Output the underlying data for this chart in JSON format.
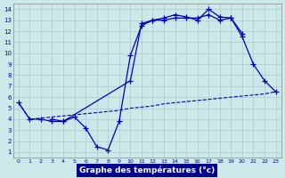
{
  "xlabel": "Graphe des températures (°c)",
  "bg_color": "#cce8e8",
  "grid_color": "#aacccc",
  "line_color": "#0000bb",
  "xlabel_bg": "#00008b",
  "xmin": -0.5,
  "xmax": 23.5,
  "ymin": 0.5,
  "ymax": 14.5,
  "xticks": [
    0,
    1,
    2,
    3,
    4,
    5,
    6,
    7,
    8,
    9,
    10,
    11,
    12,
    13,
    14,
    15,
    16,
    17,
    18,
    19,
    20,
    21,
    22,
    23
  ],
  "yticks": [
    1,
    2,
    3,
    4,
    5,
    6,
    7,
    8,
    9,
    10,
    11,
    12,
    13,
    14
  ],
  "line_dash_x": [
    0,
    1,
    2,
    3,
    4,
    5,
    6,
    7,
    8,
    9,
    10,
    11,
    12,
    13,
    14,
    15,
    16,
    17,
    18,
    19,
    20,
    21,
    22,
    23
  ],
  "line_dash_y": [
    5.5,
    4.0,
    4.1,
    4.2,
    4.3,
    4.4,
    4.5,
    4.6,
    4.7,
    4.8,
    5.0,
    5.1,
    5.2,
    5.4,
    5.5,
    5.6,
    5.7,
    5.8,
    5.9,
    6.0,
    6.1,
    6.2,
    6.3,
    6.5
  ],
  "line_upper_x": [
    0,
    1,
    2,
    3,
    4,
    10,
    11,
    12,
    13,
    14,
    15,
    16,
    17,
    18,
    19,
    20
  ],
  "line_upper_y": [
    5.5,
    4.0,
    4.0,
    3.8,
    3.8,
    7.5,
    12.7,
    13.0,
    13.2,
    13.5,
    13.3,
    13.0,
    14.0,
    13.3,
    13.2,
    11.8
  ],
  "line_lower_x": [
    3,
    4,
    5,
    6,
    7,
    8,
    9,
    10,
    11,
    12,
    13,
    14,
    15,
    16,
    17,
    18,
    19,
    20,
    21,
    22,
    23
  ],
  "line_lower_y": [
    4.0,
    3.8,
    4.2,
    3.2,
    1.5,
    1.2,
    3.8,
    9.8,
    12.5,
    13.0,
    13.0,
    13.2,
    13.2,
    13.2,
    13.5,
    13.0,
    13.2,
    11.5,
    9.0,
    7.5,
    6.5
  ]
}
